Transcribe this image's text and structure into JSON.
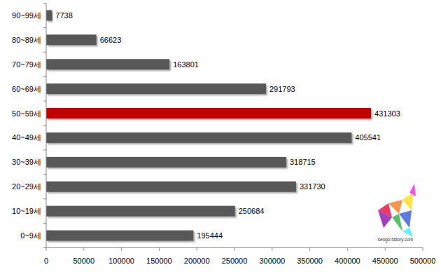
{
  "chart_data": {
    "type": "bar",
    "orientation": "horizontal",
    "categories": [
      "0~9세",
      "10~19세",
      "20~29세",
      "30~39세",
      "40~49세",
      "50~59세",
      "60~69세",
      "70~79세",
      "80~89세",
      "90~99세"
    ],
    "values": [
      195444,
      250684,
      331730,
      318715,
      405541,
      431303,
      291793,
      163801,
      66623,
      7738
    ],
    "colors": [
      "#595959",
      "#595959",
      "#595959",
      "#595959",
      "#595959",
      "#c00000",
      "#595959",
      "#595959",
      "#595959",
      "#595959"
    ],
    "xlim": [
      0,
      500000
    ],
    "xticks": [
      0,
      50000,
      100000,
      150000,
      200000,
      250000,
      300000,
      350000,
      400000,
      450000,
      500000
    ],
    "data_labels": true,
    "grid": false,
    "annotations": [
      "seogo.tistory.com"
    ]
  }
}
